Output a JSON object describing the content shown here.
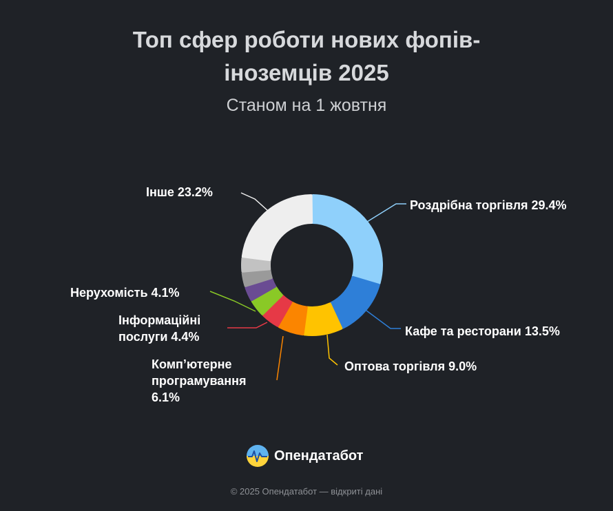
{
  "header": {
    "title_line1": "Топ сфер роботи нових фопів-",
    "title_line2": "іноземців 2025",
    "subtitle": "Станом на 1 жовтня"
  },
  "chart_data": {
    "type": "pie",
    "variant": "donut",
    "title": "Топ сфер роботи нових фопів-іноземців 2025",
    "subtitle": "Станом на 1 жовтня",
    "categories": [
      "Роздрібна торгівля",
      "Кафе та ресторани",
      "Оптова торгівля",
      "Комп’ютерне програмування",
      "Інформаційні послуги",
      "Нерухомість",
      "",
      "",
      "",
      "Інше"
    ],
    "values": [
      29.4,
      13.5,
      9.0,
      6.1,
      4.4,
      4.1,
      3.5,
      3.4,
      3.4,
      23.2
    ],
    "colors": [
      "#8fd0fb",
      "#2e7fd8",
      "#ffc300",
      "#fb8500",
      "#e63946",
      "#8ac926",
      "#6a4c93",
      "#9a9a9a",
      "#c2c2c2",
      "#eeeeee"
    ],
    "labels": [
      {
        "lines": [
          "Роздрібна торгівля 29.4%"
        ]
      },
      {
        "lines": [
          "Кафе та ресторани 13.5%"
        ]
      },
      {
        "lines": [
          "Оптова торгівля 9.0%"
        ]
      },
      {
        "lines": [
          "Комп’ютерне",
          "програмування",
          "6.1%"
        ]
      },
      {
        "lines": [
          "Інформаційні",
          "послуги 4.4%"
        ]
      },
      {
        "lines": [
          "Нерухомість 4.1%"
        ]
      },
      null,
      null,
      null,
      {
        "lines": [
          "Інше 23.2%"
        ]
      }
    ]
  },
  "brand": {
    "name": "Опендатабот",
    "logo_icon": "opendatabot-logo-icon"
  },
  "footer": {
    "text": "© 2025 Опендатабот — відкриті дані"
  }
}
